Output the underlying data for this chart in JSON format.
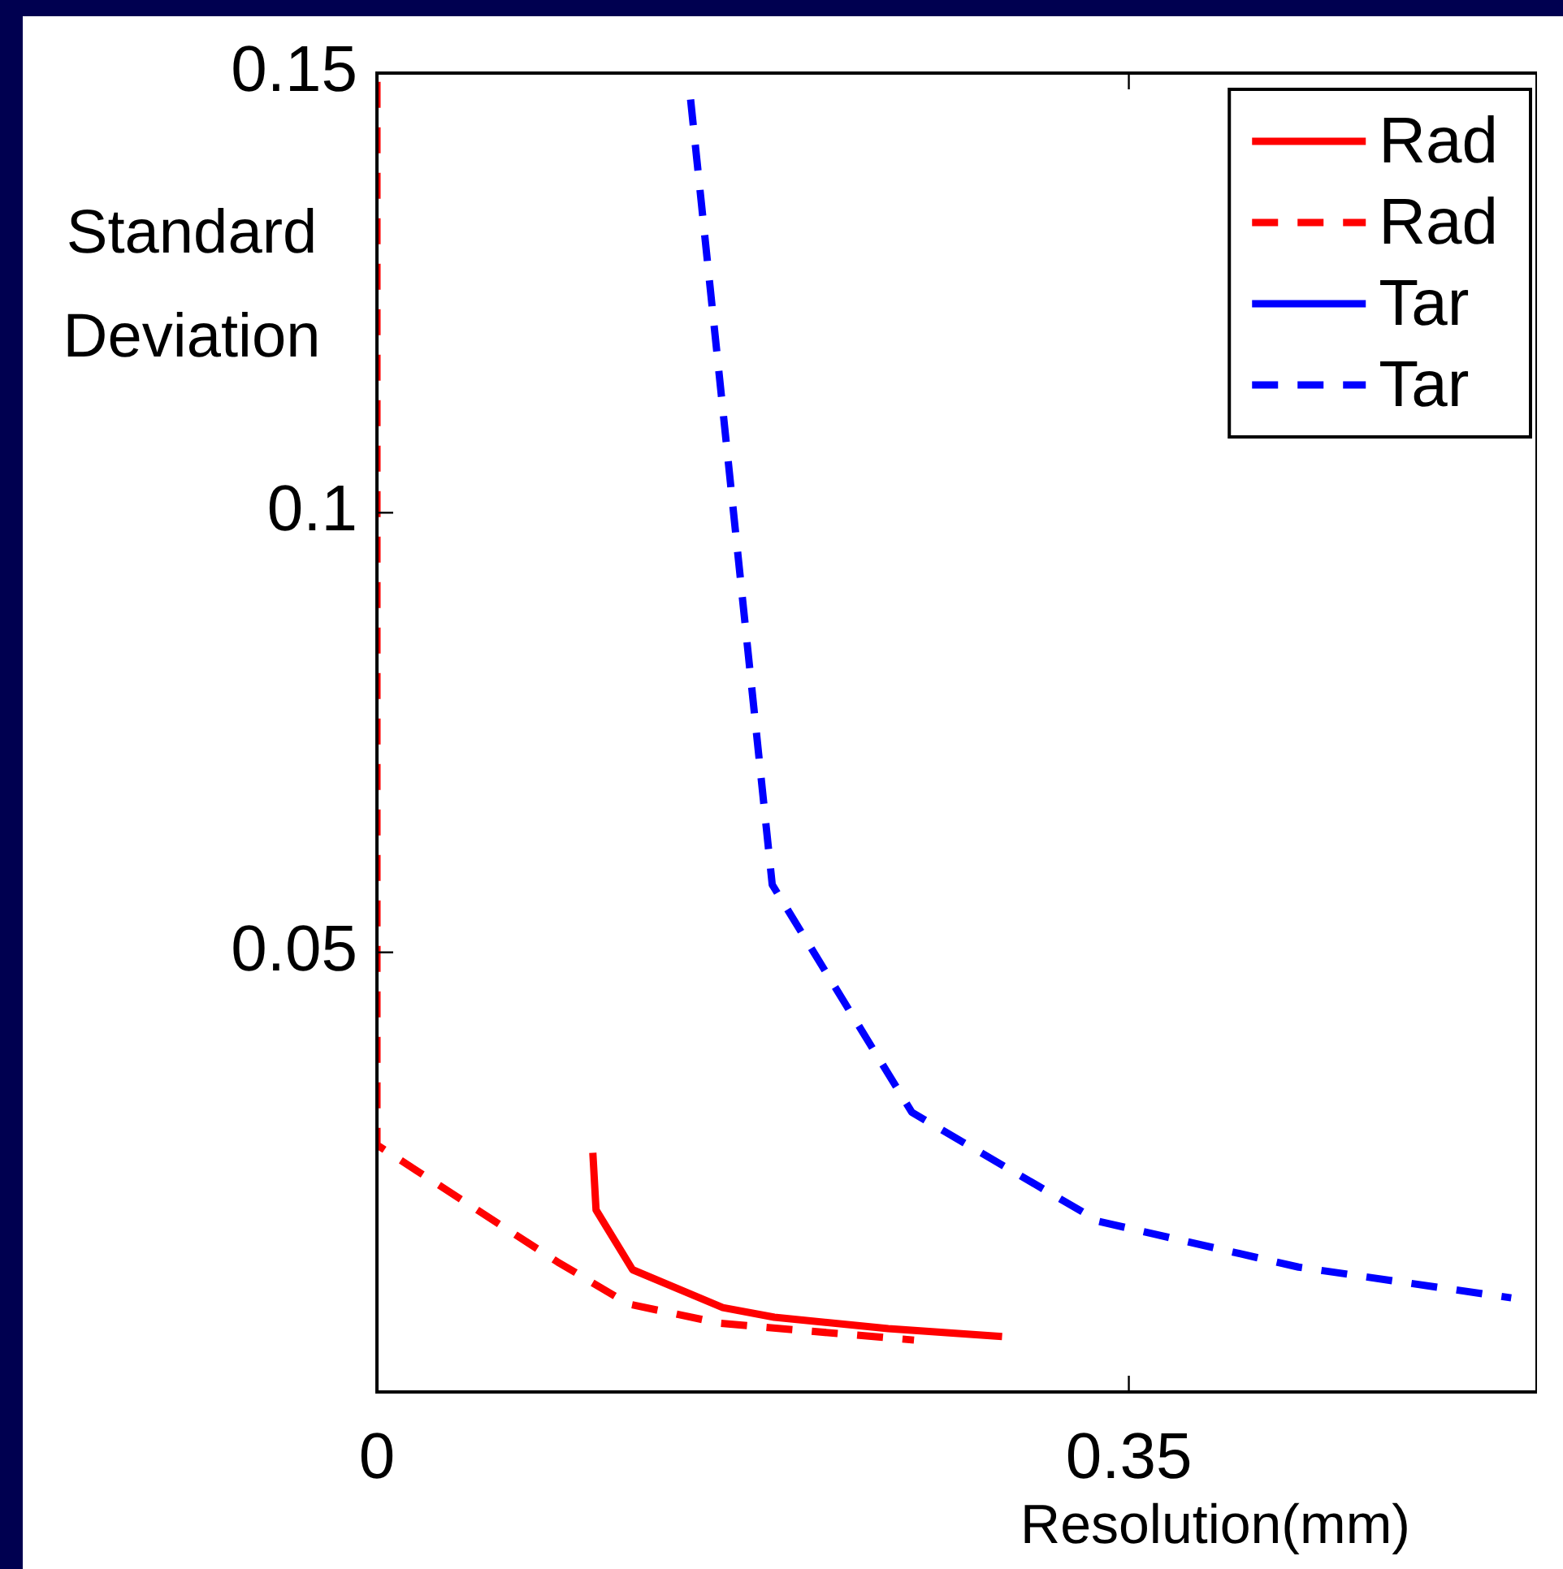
{
  "chart_data": {
    "type": "line",
    "xlabel": "Resolution(mm)",
    "ylabel": "Standard\nDeviation",
    "xlim": [
      0,
      0.54
    ],
    "ylim": [
      0,
      0.15
    ],
    "xticks": [
      0,
      0.35
    ],
    "yticks": [
      0.05,
      0.1,
      0.15
    ],
    "grid": false,
    "legend": "top right",
    "marker": "none",
    "series": [
      {
        "name": "Rad",
        "color": "#ff0000",
        "line_style": "solid",
        "x": [
          0.1005,
          0.102,
          0.119,
          0.161,
          0.185,
          0.238,
          0.291
        ],
        "values": [
          0.0272,
          0.0207,
          0.0139,
          0.0096,
          0.0085,
          0.0072,
          0.0063
        ]
      },
      {
        "name": "Rad",
        "color": "#ff0000",
        "line_style": "dashed",
        "x": [
          0,
          0,
          0.084,
          0.117,
          0.16,
          0.25
        ],
        "values": [
          0.149,
          0.0281,
          0.0148,
          0.01,
          0.0078,
          0.0059
        ]
      },
      {
        "name": "Tar",
        "color": "#0000ff",
        "line_style": "solid"
      },
      {
        "name": "Tar",
        "color": "#0000ff",
        "line_style": "dashed",
        "x": [
          0.146,
          0.184,
          0.249,
          0.336,
          0.429,
          0.528
        ],
        "values": [
          0.147,
          0.0577,
          0.0318,
          0.0194,
          0.0142,
          0.0107
        ]
      }
    ]
  }
}
